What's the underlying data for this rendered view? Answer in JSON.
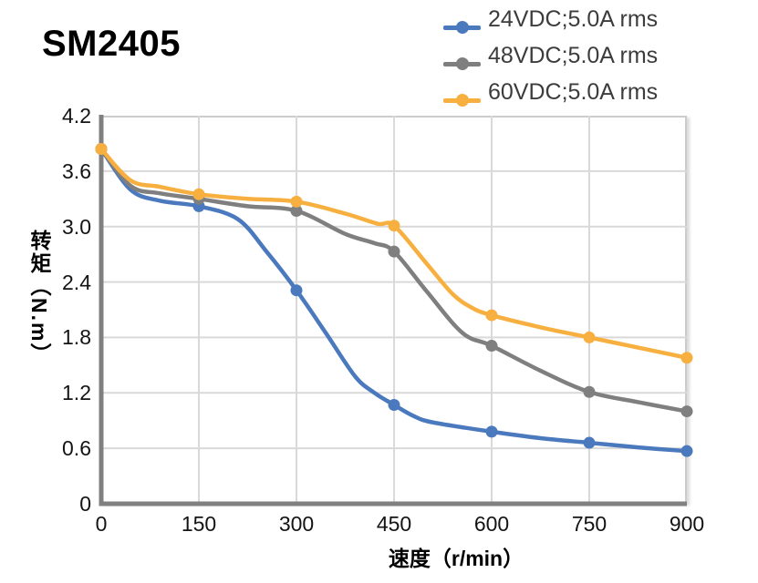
{
  "page": {
    "background": "#ffffff",
    "title": "SM2405"
  },
  "chart_data": {
    "type": "line",
    "title": "SM2405",
    "xlabel": "速度（r/min）",
    "ylabel": "转矩（N.m）",
    "xlim": [
      0,
      900
    ],
    "ylim": [
      0,
      4.2
    ],
    "xticks": [
      0,
      150,
      300,
      450,
      600,
      750,
      900
    ],
    "xtick_labels": [
      "0",
      "150",
      "300",
      "450",
      "600",
      "750",
      "900"
    ],
    "yticks": [
      0,
      0.6,
      1.2,
      1.8,
      2.4,
      3.0,
      3.6,
      4.2
    ],
    "ytick_labels": [
      "0",
      "0.6",
      "1.2",
      "1.8",
      "2.4",
      "3.0",
      "3.6",
      "4.2"
    ],
    "grid": true,
    "grid_color": "#d9d9d9",
    "axis_color": "#808080",
    "frame_color": "#cccccc",
    "tick_color": "#141414",
    "legend_position": "top-right",
    "legend_text_color": "#3c3c3c",
    "marker_x": [
      0,
      150,
      300,
      450,
      600,
      750,
      900
    ],
    "series": [
      {
        "name": "24VDC;5.0A rms",
        "color": "#4A79BE",
        "marker": "circle",
        "points": [
          [
            0,
            3.84
          ],
          [
            45,
            3.4
          ],
          [
            90,
            3.28
          ],
          [
            150,
            3.22
          ],
          [
            210,
            3.08
          ],
          [
            255,
            2.72
          ],
          [
            300,
            2.31
          ],
          [
            345,
            1.85
          ],
          [
            390,
            1.38
          ],
          [
            420,
            1.2
          ],
          [
            450,
            1.07
          ],
          [
            480,
            0.95
          ],
          [
            510,
            0.88
          ],
          [
            600,
            0.78
          ],
          [
            675,
            0.71
          ],
          [
            750,
            0.66
          ],
          [
            825,
            0.61
          ],
          [
            900,
            0.57
          ]
        ]
      },
      {
        "name": "48VDC;5.0A rms",
        "color": "#7F7F7F",
        "marker": "circle",
        "points": [
          [
            0,
            3.84
          ],
          [
            45,
            3.44
          ],
          [
            90,
            3.36
          ],
          [
            150,
            3.3
          ],
          [
            225,
            3.22
          ],
          [
            300,
            3.17
          ],
          [
            375,
            2.92
          ],
          [
            420,
            2.82
          ],
          [
            450,
            2.73
          ],
          [
            500,
            2.3
          ],
          [
            555,
            1.85
          ],
          [
            600,
            1.71
          ],
          [
            675,
            1.44
          ],
          [
            750,
            1.21
          ],
          [
            825,
            1.1
          ],
          [
            900,
            1.0
          ]
        ]
      },
      {
        "name": "60VDC;5.0A rms",
        "color": "#F7B03F",
        "marker": "circle",
        "points": [
          [
            0,
            3.84
          ],
          [
            45,
            3.5
          ],
          [
            90,
            3.43
          ],
          [
            150,
            3.35
          ],
          [
            225,
            3.3
          ],
          [
            300,
            3.27
          ],
          [
            375,
            3.14
          ],
          [
            425,
            3.03
          ],
          [
            450,
            3.01
          ],
          [
            500,
            2.6
          ],
          [
            540,
            2.27
          ],
          [
            570,
            2.12
          ],
          [
            600,
            2.04
          ],
          [
            675,
            1.91
          ],
          [
            750,
            1.8
          ],
          [
            825,
            1.69
          ],
          [
            900,
            1.58
          ]
        ]
      }
    ]
  }
}
